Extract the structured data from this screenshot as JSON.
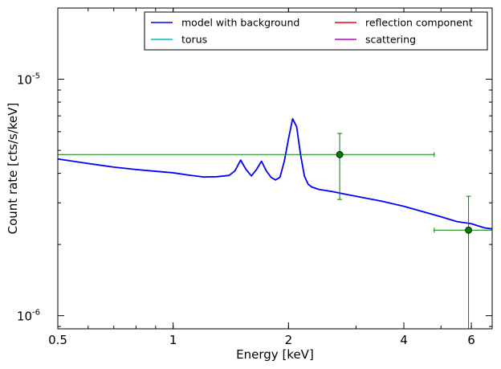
{
  "chart_data": {
    "type": "line",
    "xlabel": "Energy [keV]",
    "ylabel": "Count rate [cts/s/keV]",
    "xscale": "log",
    "yscale": "log",
    "xlim": [
      0.5,
      6.8
    ],
    "ylim": [
      8.8e-07,
      2e-05
    ],
    "x_ticks": [
      {
        "value": 0.5,
        "label": "0.5"
      },
      {
        "value": 1,
        "label": "1"
      },
      {
        "value": 2,
        "label": "2"
      },
      {
        "value": 4,
        "label": "4"
      },
      {
        "value": 6,
        "label": "6"
      }
    ],
    "y_ticks": [
      {
        "value": 1e-06,
        "base": "10",
        "exp": "-6"
      },
      {
        "value": 1e-05,
        "base": "10",
        "exp": "-5"
      }
    ],
    "grid": false,
    "legend": {
      "placement": "top-right",
      "columns": 2,
      "entries": [
        {
          "label": "model with background",
          "color": "#0000ff"
        },
        {
          "label": "reflection component",
          "color": "#ff0000"
        },
        {
          "label": "torus",
          "color": "#00bfbf"
        },
        {
          "label": "scattering",
          "color": "#bf00bf"
        }
      ]
    },
    "series": [
      {
        "name": "model with background",
        "color": "#0000ff",
        "x": [
          0.5,
          0.6,
          0.7,
          0.8,
          0.9,
          1.0,
          1.1,
          1.2,
          1.3,
          1.4,
          1.45,
          1.5,
          1.55,
          1.6,
          1.65,
          1.7,
          1.75,
          1.8,
          1.85,
          1.9,
          1.95,
          2.0,
          2.05,
          2.1,
          2.15,
          2.2,
          2.25,
          2.3,
          2.4,
          2.6,
          2.8,
          3.0,
          3.5,
          4.0,
          4.5,
          5.0,
          5.5,
          6.0,
          6.5,
          6.8
        ],
        "y": [
          4.6e-06,
          4.4e-06,
          4.25e-06,
          4.15e-06,
          4.08e-06,
          4.02e-06,
          3.93e-06,
          3.86e-06,
          3.87e-06,
          3.92e-06,
          4.1e-06,
          4.55e-06,
          4.15e-06,
          3.9e-06,
          4.15e-06,
          4.5e-06,
          4.1e-06,
          3.85e-06,
          3.75e-06,
          3.85e-06,
          4.5e-06,
          5.6e-06,
          6.8e-06,
          6.3e-06,
          4.8e-06,
          3.9e-06,
          3.6e-06,
          3.5e-06,
          3.42e-06,
          3.35e-06,
          3.27e-06,
          3.2e-06,
          3.05e-06,
          2.9e-06,
          2.75e-06,
          2.62e-06,
          2.5e-06,
          2.45e-06,
          2.35e-06,
          2.33e-06
        ]
      }
    ],
    "data_points": {
      "color": "#008000",
      "points": [
        {
          "x": 2.72,
          "y": 4.8e-06,
          "xerr": [
            0.5,
            4.8
          ],
          "yerr": [
            3.1e-06,
            5.9e-06
          ]
        },
        {
          "x": 5.9,
          "y": 2.3e-06,
          "xerr": [
            4.8,
            6.8
          ],
          "yerr": [
            8.8e-07,
            3.2e-06
          ]
        }
      ]
    }
  }
}
